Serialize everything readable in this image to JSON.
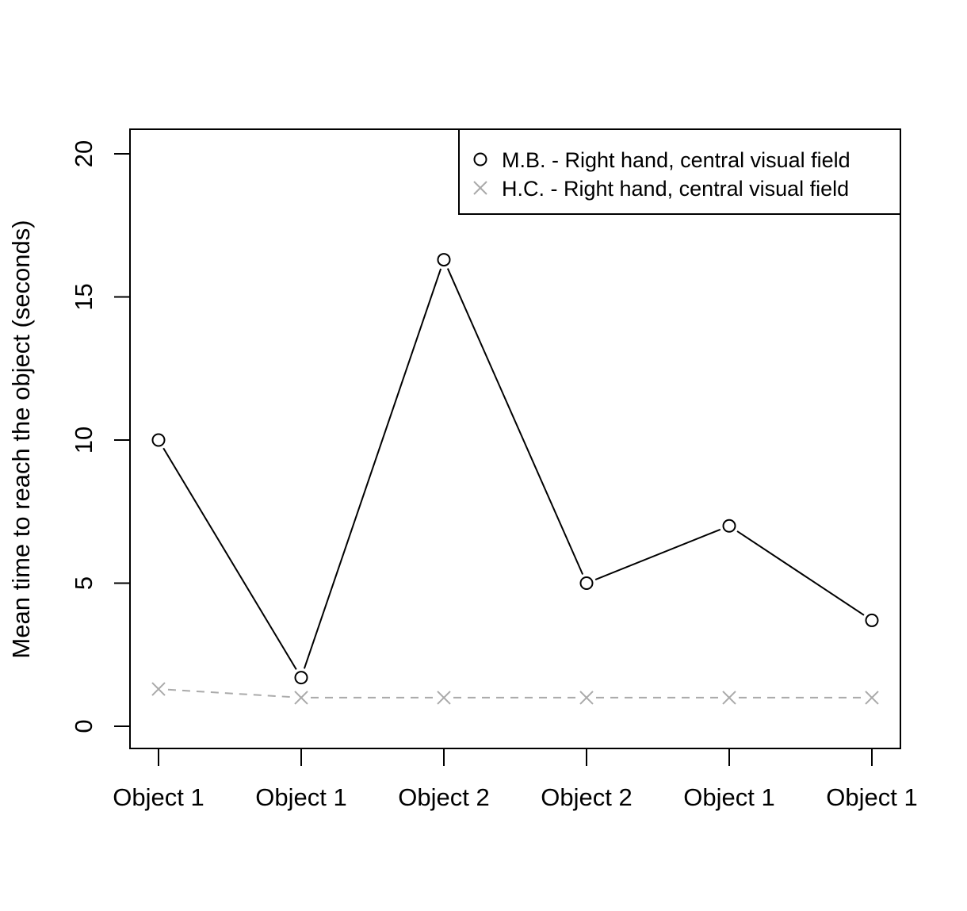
{
  "chart_data": {
    "type": "line",
    "categories": [
      "Object 1",
      "Object 1",
      "Object 2",
      "Object 2",
      "Object 1",
      "Object 1"
    ],
    "ylabel": "Mean time to reach the object (seconds)",
    "xlabel": "",
    "title": "",
    "ylim": [
      0,
      20
    ],
    "yticks": [
      0,
      5,
      10,
      15,
      20
    ],
    "grid": false,
    "legend_position": "top-right",
    "series": [
      {
        "name": "M.B. - Right hand, central visual field",
        "values": [
          10.0,
          1.7,
          16.3,
          5.0,
          7.0,
          3.7
        ],
        "marker": "circle",
        "line_style": "solid",
        "color": "#000000"
      },
      {
        "name": "H.C. - Right hand, central visual field",
        "values": [
          1.3,
          1.0,
          1.0,
          1.0,
          1.0,
          1.0
        ],
        "marker": "cross",
        "line_style": "dashed",
        "color": "#aaaaaa"
      }
    ]
  }
}
